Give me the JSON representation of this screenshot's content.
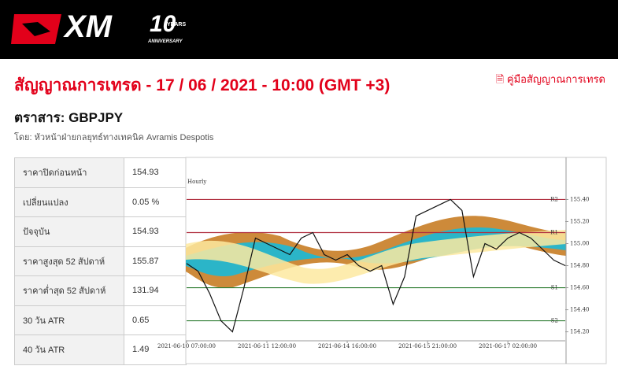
{
  "header": {
    "logo": "XM",
    "badge_years": "YEARS",
    "badge_text": "ANNIVERSARY"
  },
  "title": "สัญญาณการเทรด - 17 / 06 / 2021 - 10:00 (GMT +3)",
  "guide_link": "คู่มือสัญญาณการเทรด",
  "instrument": "ตราสาร: GBPJPY",
  "author": "โดย: หัวหน้าฝ่ายกลยุทธ์ทางเทคนิค Avramis Despotis",
  "table": {
    "rows": [
      [
        "ราคาปิดก่อนหน้า",
        "154.93"
      ],
      [
        "เปลี่ยนแปลง",
        "0.05 %"
      ],
      [
        "ปัจจุบัน",
        "154.93"
      ],
      [
        "ราคาสูงสุด 52 สัปดาห์",
        "155.87"
      ],
      [
        "ราคาต่ำสุด 52 สัปดาห์",
        "131.94"
      ],
      [
        "30 วัน ATR",
        "0.65"
      ],
      [
        "40 วัน ATR",
        "1.49"
      ]
    ]
  },
  "chart_data": {
    "type": "line",
    "title": "Hourly",
    "categories": [
      "2021-06-10 07:00:00",
      null,
      null,
      null,
      null,
      null,
      null,
      "2021-06-11 12:00:00",
      null,
      null,
      null,
      null,
      null,
      null,
      "2021-06-14 16:00:00",
      null,
      null,
      null,
      null,
      null,
      null,
      "2021-06-15 21:00:00",
      null,
      null,
      null,
      null,
      null,
      null,
      "2021-06-17 02:00:00",
      null,
      null,
      null,
      null,
      null
    ],
    "series": [
      {
        "name": "GBPJPY",
        "color": "#111111",
        "values": [
          154.82,
          154.75,
          154.55,
          154.3,
          154.2,
          154.6,
          155.05,
          155.0,
          154.95,
          154.9,
          155.05,
          155.1,
          154.9,
          154.85,
          154.9,
          154.8,
          154.75,
          154.8,
          154.45,
          154.7,
          155.25,
          155.3,
          155.35,
          155.4,
          155.3,
          154.7,
          155.0,
          154.95,
          155.05,
          155.1,
          155.05,
          154.95,
          154.85,
          154.8
        ]
      }
    ],
    "levels": [
      {
        "name": "R2",
        "value": 155.4,
        "color": "#b03040"
      },
      {
        "name": "R1",
        "value": 155.1,
        "color": "#b03040"
      },
      {
        "name": "S1",
        "value": 154.6,
        "color": "#2e7d32"
      },
      {
        "name": "S2",
        "value": 154.3,
        "color": "#2e7d32"
      }
    ],
    "ylim": [
      154.14,
      155.76
    ],
    "yticks": [
      {
        "value": 154.2,
        "label": "154.20"
      },
      {
        "value": 154.4,
        "label": "154.40"
      },
      {
        "value": 154.6,
        "label": "154.60"
      },
      {
        "value": 154.8,
        "label": "154.80"
      },
      {
        "value": 155.0,
        "label": "155.00"
      },
      {
        "value": 155.2,
        "label": "155.20"
      },
      {
        "value": 155.4,
        "label": "155.40"
      }
    ]
  }
}
